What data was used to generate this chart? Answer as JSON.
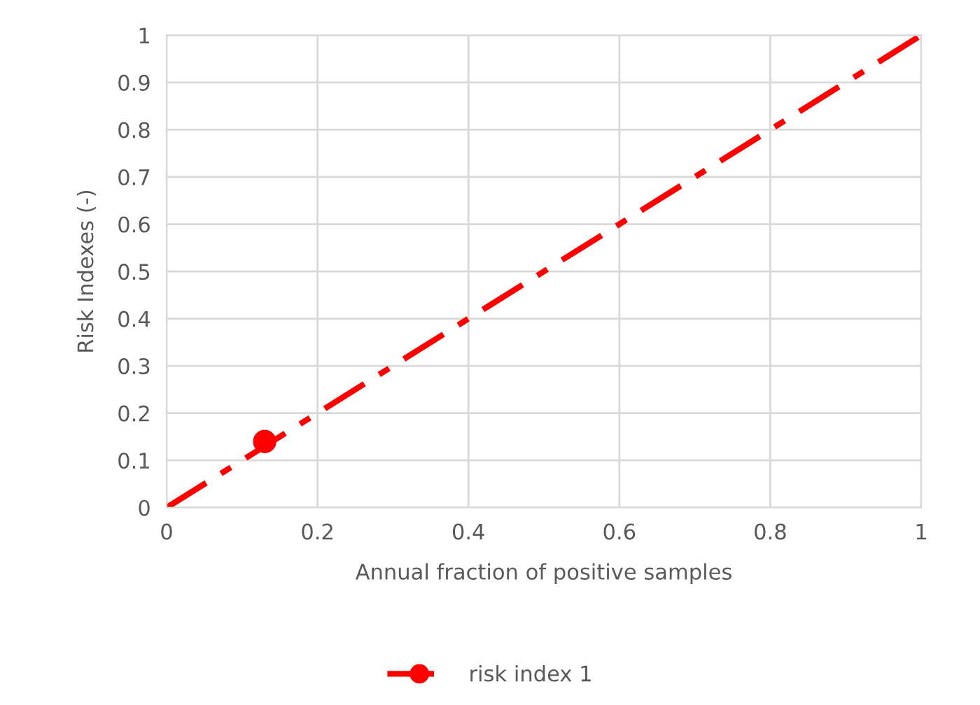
{
  "chart_data": {
    "type": "line",
    "xlabel": "Annual fraction of positive samples",
    "ylabel": "Risk Indexes (-)",
    "series": [
      {
        "color": "#ff0000",
        "x": [
          0,
          1
        ],
        "values": [
          0,
          1
        ],
        "line_style": "dashed",
        "marker": "none"
      },
      {
        "name": "risk index 1",
        "color": "#ff0000",
        "x": [
          0.13
        ],
        "values": [
          0.14
        ],
        "line_style": "dashed",
        "marker": "circle"
      }
    ],
    "xlim": [
      0,
      1
    ],
    "xticks": [
      0,
      0.2,
      0.4,
      0.6,
      0.8,
      1
    ],
    "ylim": [
      0,
      1
    ],
    "yticks": [
      0,
      0.1,
      0.2,
      0.3,
      0.4,
      0.5,
      0.6,
      0.7,
      0.8,
      0.9,
      1
    ],
    "grid": true,
    "legend": "bottom"
  }
}
